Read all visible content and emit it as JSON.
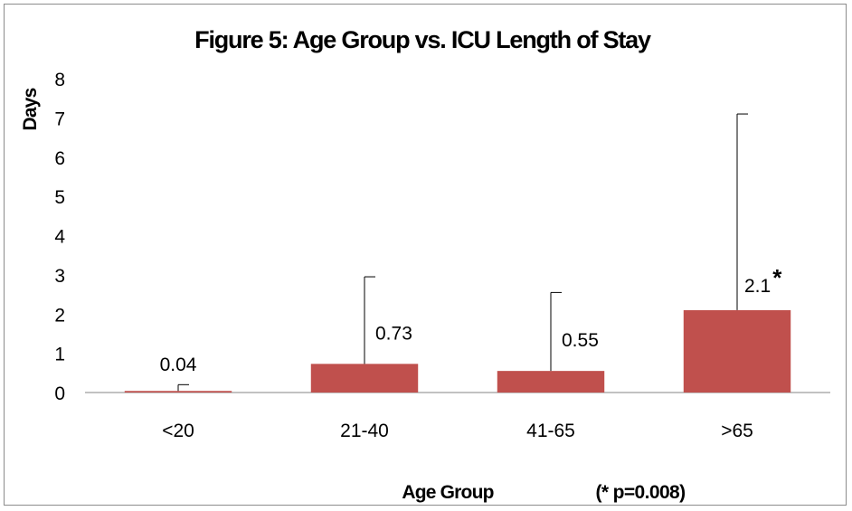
{
  "chart_data": {
    "type": "bar",
    "title": "Figure 5: Age Group vs. ICU Length of Stay",
    "ylabel": "Days",
    "xlabel": "Age Group",
    "note": "(* p=0.008)",
    "categories": [
      "<20",
      "21-40",
      "41-65",
      ">65"
    ],
    "values": [
      0.04,
      0.73,
      0.55,
      2.1
    ],
    "value_labels": [
      "0.04",
      "0.73",
      "0.55",
      "2.1"
    ],
    "error_upper": [
      0.2,
      2.95,
      2.55,
      7.1
    ],
    "significance_marker": "*",
    "significant_category": ">65",
    "ylim": [
      0,
      8
    ],
    "yticks": [
      "0",
      "1",
      "2",
      "3",
      "4",
      "5",
      "6",
      "7",
      "8"
    ],
    "grid": false,
    "legend": "none",
    "bar_color": "#c0504d"
  }
}
